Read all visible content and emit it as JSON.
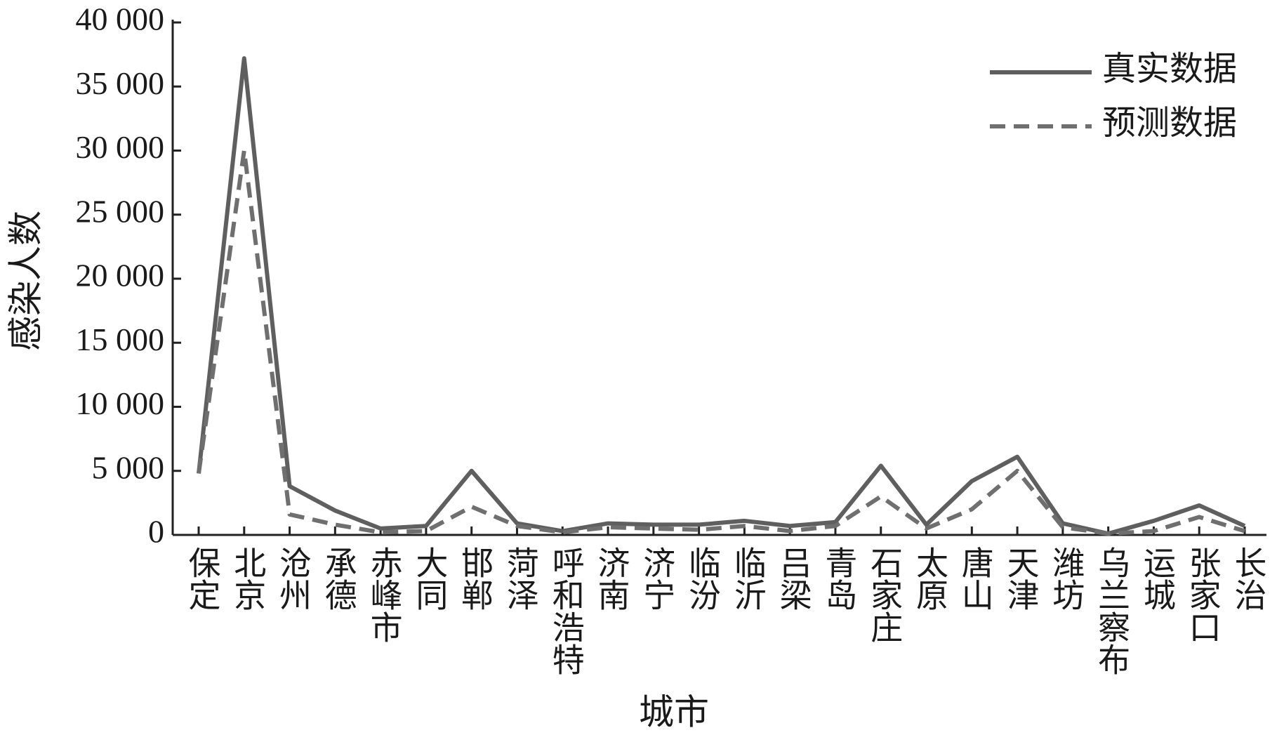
{
  "chart_data": {
    "type": "line",
    "x_label": "城市",
    "y_label": "感染人数",
    "categories": [
      "保定",
      "北京",
      "沧州",
      "承德",
      "赤峰市",
      "大同",
      "邯郸",
      "菏泽",
      "呼和浩特",
      "济南",
      "济宁",
      "临汾",
      "临沂",
      "吕梁",
      "青岛",
      "石家庄",
      "太原",
      "唐山",
      "天津",
      "潍坊",
      "乌兰察布",
      "运城",
      "张家口",
      "长治"
    ],
    "series": [
      {
        "name": "真实数据",
        "color": "#5f5f5f",
        "dash": "solid",
        "values": [
          4800,
          37200,
          3800,
          1900,
          500,
          700,
          5000,
          900,
          300,
          900,
          800,
          800,
          1100,
          700,
          1000,
          5400,
          800,
          4200,
          6100,
          900,
          100,
          1100,
          2300,
          700
        ]
      },
      {
        "name": "预测数据",
        "color": "#6f6f6f",
        "dash": "dashed",
        "values": [
          4800,
          30000,
          1600,
          800,
          200,
          300,
          2200,
          700,
          200,
          600,
          500,
          400,
          700,
          300,
          700,
          3000,
          500,
          2000,
          5000,
          600,
          100,
          300,
          1400,
          300
        ]
      }
    ],
    "ylim": [
      0,
      40000
    ],
    "yticks": [
      0,
      {
        "value": 5000,
        "label": "5 000"
      },
      {
        "value": 10000,
        "label": "10 000"
      },
      {
        "value": 15000,
        "label": "15 000"
      },
      {
        "value": 20000,
        "label": "20 000"
      },
      {
        "value": 25000,
        "label": "25 000"
      },
      {
        "value": 30000,
        "label": "30 000"
      },
      {
        "value": 35000,
        "label": "35 000"
      },
      {
        "value": 40000,
        "label": "40 000"
      }
    ],
    "legend_position": "upper right",
    "grid": false
  }
}
